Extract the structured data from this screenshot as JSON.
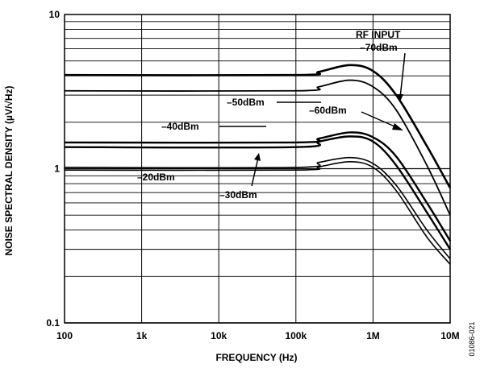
{
  "chart_data": {
    "type": "line",
    "xlabel": "FREQUENCY (Hz)",
    "ylabel": "NOISE SPECTRAL DENSITY (µV/√Hz)",
    "xscale": "log",
    "yscale": "log",
    "xlim": [
      100,
      10000000
    ],
    "ylim": [
      0.1,
      10
    ],
    "grid": true,
    "x_ticks": [
      {
        "value": 100,
        "label": "100"
      },
      {
        "value": 1000,
        "label": "1k"
      },
      {
        "value": 10000,
        "label": "10k"
      },
      {
        "value": 100000,
        "label": "100k"
      },
      {
        "value": 1000000,
        "label": "1M"
      },
      {
        "value": 10000000,
        "label": "10M"
      }
    ],
    "y_ticks": [
      {
        "value": 0.1,
        "label": "0.1"
      },
      {
        "value": 1,
        "label": "1"
      },
      {
        "value": 10,
        "label": "10"
      }
    ],
    "series": [
      {
        "name": "-20dBm",
        "x": [
          100,
          100000,
          200000,
          500000,
          1000000,
          2000000,
          5000000,
          10000000
        ],
        "y": [
          0.98,
          0.98,
          1.03,
          1.11,
          1.02,
          0.72,
          0.36,
          0.24
        ]
      },
      {
        "name": "-30dBm",
        "x": [
          100,
          100000,
          200000,
          500000,
          1000000,
          2000000,
          5000000,
          10000000
        ],
        "y": [
          1.02,
          1.02,
          1.1,
          1.18,
          1.08,
          0.78,
          0.4,
          0.26
        ]
      },
      {
        "name": "-40dBm",
        "x": [
          100,
          100000,
          200000,
          500000,
          1000000,
          2000000,
          5000000,
          10000000
        ],
        "y": [
          1.38,
          1.38,
          1.5,
          1.62,
          1.5,
          1.05,
          0.52,
          0.3
        ]
      },
      {
        "name": "-50dBm",
        "x": [
          100,
          100000,
          200000,
          500000,
          1000000,
          2000000,
          5000000,
          10000000
        ],
        "y": [
          1.48,
          1.48,
          1.57,
          1.72,
          1.6,
          1.2,
          0.6,
          0.34
        ]
      },
      {
        "name": "-60dBm",
        "x": [
          100,
          100000,
          200000,
          500000,
          1000000,
          2000000,
          5000000,
          10000000
        ],
        "y": [
          3.2,
          3.2,
          3.4,
          3.75,
          3.4,
          2.4,
          1.05,
          0.5
        ]
      },
      {
        "name": "-70dBm",
        "x": [
          100,
          100000,
          200000,
          500000,
          1000000,
          2000000,
          5000000,
          10000000
        ],
        "y": [
          4.05,
          4.05,
          4.25,
          4.7,
          4.3,
          3.0,
          1.4,
          0.75
        ]
      }
    ],
    "annotations": {
      "rf_input": "RF INPUT",
      "dbm_70": "–70dBm",
      "dbm_60": "–60dBm",
      "dbm_50": "–50dBm",
      "dbm_40": "–40dBm",
      "dbm_30": "–30dBm",
      "dbm_20": "–20dBm"
    }
  },
  "figure_code": "01086-021"
}
